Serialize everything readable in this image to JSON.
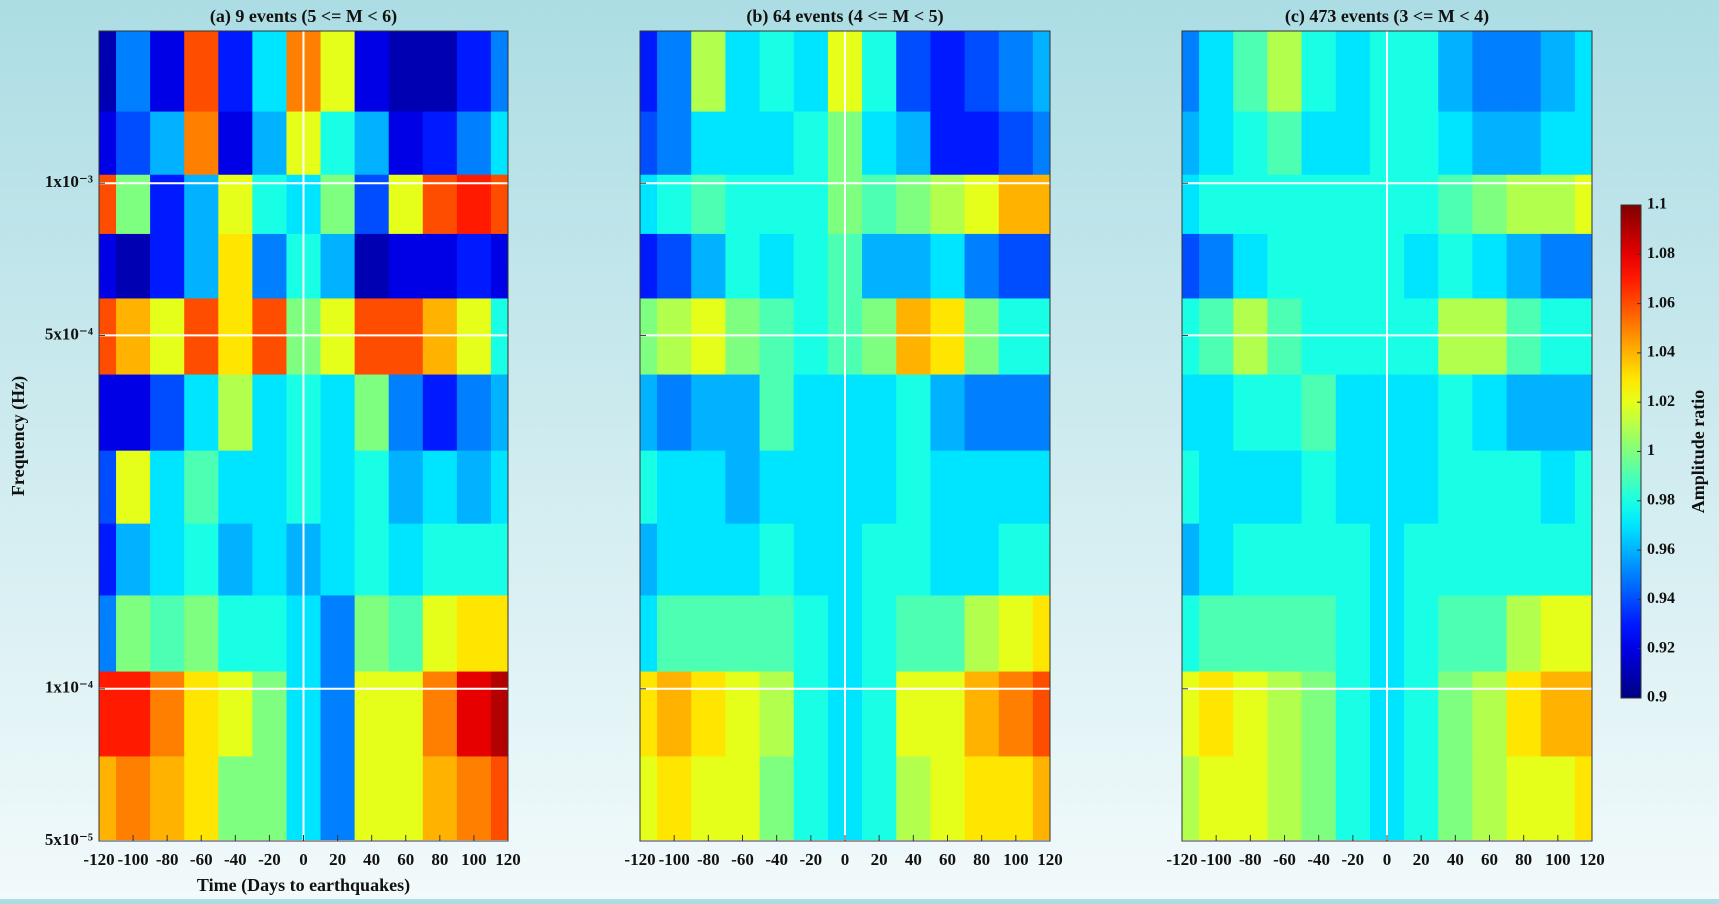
{
  "chart_data": [
    {
      "type": "heatmap",
      "title": "(a) 9 events (5 <= M < 6)",
      "xlabel": "Time (Days to earthquakes)",
      "ylabel": "Frequency (Hz)",
      "x": [
        -120,
        -100,
        -80,
        -60,
        -40,
        -20,
        0,
        20,
        40,
        60,
        80,
        100,
        120
      ],
      "y": [
        0.0016,
        0.0012,
        0.0009,
        0.0007,
        0.0005,
        0.00035,
        0.00025,
        0.00018,
        0.00013,
        9e-05,
        6e-05
      ],
      "z": [
        [
          0.91,
          0.95,
          0.92,
          1.06,
          0.93,
          0.97,
          1.05,
          1.02,
          0.92,
          0.91,
          0.91,
          0.93,
          0.95
        ],
        [
          0.92,
          0.94,
          0.96,
          1.05,
          0.92,
          0.96,
          1.02,
          0.98,
          0.96,
          0.92,
          0.93,
          0.95,
          0.97
        ],
        [
          1.06,
          1.0,
          0.93,
          0.96,
          1.02,
          0.98,
          0.97,
          1.0,
          0.94,
          1.02,
          1.06,
          1.07,
          1.06
        ],
        [
          0.92,
          0.91,
          0.93,
          0.96,
          1.03,
          0.95,
          0.98,
          0.96,
          0.91,
          0.92,
          0.92,
          0.93,
          0.92
        ],
        [
          1.06,
          1.04,
          1.02,
          1.06,
          1.03,
          1.06,
          1.0,
          1.02,
          1.06,
          1.06,
          1.04,
          1.02,
          0.98
        ],
        [
          0.92,
          0.92,
          0.94,
          0.97,
          1.01,
          0.97,
          0.98,
          0.97,
          1.0,
          0.95,
          0.93,
          0.95,
          0.96
        ],
        [
          0.94,
          1.02,
          0.97,
          0.99,
          0.97,
          0.97,
          0.98,
          0.97,
          0.98,
          0.96,
          0.97,
          0.96,
          0.97
        ],
        [
          0.93,
          0.96,
          0.97,
          0.98,
          0.96,
          0.97,
          0.96,
          0.97,
          0.98,
          0.97,
          0.98,
          0.98,
          0.98
        ],
        [
          0.95,
          1.0,
          0.99,
          1.0,
          0.98,
          0.98,
          0.97,
          0.95,
          1.0,
          0.99,
          1.02,
          1.03,
          1.03
        ],
        [
          1.07,
          1.07,
          1.05,
          1.03,
          1.02,
          1.0,
          0.97,
          0.95,
          1.02,
          1.02,
          1.05,
          1.08,
          1.09
        ],
        [
          1.04,
          1.05,
          1.04,
          1.03,
          1.0,
          1.0,
          0.97,
          0.95,
          1.02,
          1.02,
          1.04,
          1.05,
          1.06
        ]
      ],
      "xlim": [
        -120,
        120
      ],
      "xticks": [
        -120,
        -100,
        -80,
        -60,
        -40,
        -20,
        0,
        20,
        40,
        60,
        80,
        100,
        120
      ],
      "ylim": [
        5e-05,
        0.002
      ],
      "yscale": "log",
      "ytick_labels": true,
      "yticks": [
        {
          "value": 5e-05,
          "label": "5x10⁻⁵"
        },
        {
          "value": 0.0001,
          "label": "1x10⁻⁴"
        },
        {
          "value": 0.0005,
          "label": "5x10⁻⁴"
        },
        {
          "value": 0.001,
          "label": "1x10⁻³"
        }
      ],
      "vlines": [
        0
      ],
      "grid": true
    },
    {
      "type": "heatmap",
      "title": "(b) 64 events (4 <= M < 5)",
      "x": [
        -120,
        -100,
        -80,
        -60,
        -40,
        -20,
        0,
        20,
        40,
        60,
        80,
        100,
        120
      ],
      "y": [
        0.0016,
        0.0012,
        0.0009,
        0.0007,
        0.0005,
        0.00035,
        0.00025,
        0.00018,
        0.00013,
        9e-05,
        6e-05
      ],
      "z": [
        [
          0.93,
          0.95,
          1.01,
          0.97,
          0.98,
          0.97,
          1.02,
          0.98,
          0.94,
          0.93,
          0.94,
          0.95,
          0.96
        ],
        [
          0.94,
          0.95,
          0.97,
          0.97,
          0.97,
          0.98,
          1.0,
          0.97,
          0.96,
          0.93,
          0.93,
          0.94,
          0.95
        ],
        [
          0.97,
          0.98,
          0.99,
          0.98,
          0.98,
          0.98,
          1.0,
          0.99,
          1.0,
          1.01,
          1.02,
          1.04,
          1.04
        ],
        [
          0.93,
          0.94,
          0.96,
          0.98,
          0.97,
          0.98,
          0.99,
          0.96,
          0.96,
          0.97,
          0.95,
          0.94,
          0.94
        ],
        [
          1.0,
          1.01,
          1.02,
          1.0,
          0.99,
          0.98,
          0.99,
          1.0,
          1.04,
          1.03,
          1.0,
          0.98,
          0.98
        ],
        [
          0.96,
          0.95,
          0.96,
          0.96,
          0.99,
          0.97,
          0.97,
          0.97,
          0.98,
          0.96,
          0.95,
          0.95,
          0.95
        ],
        [
          0.98,
          0.97,
          0.97,
          0.96,
          0.97,
          0.97,
          0.97,
          0.97,
          0.98,
          0.97,
          0.97,
          0.97,
          0.97
        ],
        [
          0.96,
          0.97,
          0.97,
          0.97,
          0.98,
          0.97,
          0.97,
          0.98,
          0.98,
          0.97,
          0.97,
          0.98,
          0.98
        ],
        [
          0.97,
          0.99,
          0.99,
          0.99,
          0.99,
          0.98,
          0.97,
          0.98,
          0.99,
          0.99,
          1.01,
          1.02,
          1.03
        ],
        [
          1.03,
          1.04,
          1.03,
          1.02,
          1.01,
          0.98,
          0.97,
          0.98,
          1.02,
          1.02,
          1.04,
          1.05,
          1.06
        ],
        [
          1.02,
          1.03,
          1.02,
          1.02,
          1.0,
          0.98,
          0.97,
          0.98,
          1.01,
          1.02,
          1.03,
          1.03,
          1.04
        ]
      ],
      "xlim": [
        -120,
        120
      ],
      "xticks": [
        -120,
        -100,
        -80,
        -60,
        -40,
        -20,
        0,
        20,
        40,
        60,
        80,
        100,
        120
      ],
      "ylim": [
        5e-05,
        0.002
      ],
      "yscale": "log",
      "ytick_labels": false,
      "yticks": [
        5e-05,
        0.0001,
        0.0005,
        0.001
      ],
      "vlines": [
        0
      ],
      "grid": true
    },
    {
      "type": "heatmap",
      "title": "(c) 473 events (3 <= M < 4)",
      "x": [
        -120,
        -100,
        -80,
        -60,
        -40,
        -20,
        0,
        20,
        40,
        60,
        80,
        100,
        120
      ],
      "y": [
        0.0016,
        0.0012,
        0.0009,
        0.0007,
        0.0005,
        0.00035,
        0.00025,
        0.00018,
        0.00013,
        9e-05,
        6e-05
      ],
      "z": [
        [
          0.95,
          0.97,
          0.99,
          1.01,
          0.98,
          0.97,
          0.98,
          0.98,
          0.96,
          0.95,
          0.95,
          0.96,
          0.97
        ],
        [
          0.96,
          0.97,
          0.98,
          0.99,
          0.97,
          0.97,
          0.98,
          0.98,
          0.97,
          0.96,
          0.96,
          0.97,
          0.97
        ],
        [
          0.97,
          0.98,
          0.98,
          0.98,
          0.98,
          0.98,
          0.98,
          0.98,
          0.99,
          1.0,
          1.01,
          1.01,
          1.02
        ],
        [
          0.94,
          0.95,
          0.97,
          0.98,
          0.98,
          0.98,
          0.98,
          0.97,
          0.98,
          0.97,
          0.96,
          0.95,
          0.95
        ],
        [
          0.98,
          0.99,
          1.01,
          0.99,
          0.98,
          0.98,
          0.98,
          0.98,
          1.01,
          1.01,
          0.99,
          0.98,
          0.98
        ],
        [
          0.97,
          0.97,
          0.98,
          0.98,
          0.99,
          0.97,
          0.97,
          0.97,
          0.98,
          0.97,
          0.96,
          0.96,
          0.96
        ],
        [
          0.98,
          0.97,
          0.97,
          0.97,
          0.98,
          0.97,
          0.97,
          0.97,
          0.98,
          0.98,
          0.98,
          0.97,
          0.98
        ],
        [
          0.96,
          0.97,
          0.98,
          0.98,
          0.98,
          0.98,
          0.97,
          0.98,
          0.98,
          0.98,
          0.98,
          0.98,
          0.98
        ],
        [
          0.98,
          0.99,
          0.99,
          0.99,
          0.99,
          0.98,
          0.97,
          0.98,
          0.99,
          0.99,
          1.01,
          1.02,
          1.02
        ],
        [
          1.02,
          1.03,
          1.02,
          1.01,
          1.0,
          0.98,
          0.97,
          0.98,
          1.0,
          1.01,
          1.03,
          1.04,
          1.04
        ],
        [
          1.01,
          1.02,
          1.02,
          1.01,
          1.0,
          0.98,
          0.97,
          0.98,
          1.0,
          1.01,
          1.02,
          1.02,
          1.03
        ]
      ],
      "xlim": [
        -120,
        120
      ],
      "xticks": [
        -120,
        -100,
        -80,
        -60,
        -40,
        -20,
        0,
        20,
        40,
        60,
        80,
        100,
        120
      ],
      "ylim": [
        5e-05,
        0.002
      ],
      "yscale": "log",
      "ytick_labels": false,
      "yticks": [
        5e-05,
        0.0001,
        0.0005,
        0.001
      ],
      "vlines": [
        0
      ],
      "grid": true
    }
  ],
  "colorbar": {
    "label": "Amplitude ratio",
    "colormap": "jet",
    "lim": [
      0.9,
      1.1
    ],
    "ticks": [
      0.9,
      0.92,
      0.94,
      0.96,
      0.98,
      1,
      1.02,
      1.04,
      1.06,
      1.08,
      1.1
    ]
  }
}
